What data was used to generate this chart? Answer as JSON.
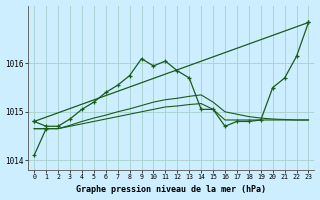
{
  "title": "Graphe pression niveau de la mer (hPa)",
  "bg_color": "#cceeff",
  "grid_color": "#aad4d4",
  "line_color": "#1a5c1a",
  "xlim": [
    -0.5,
    23.5
  ],
  "ylim": [
    1013.8,
    1017.2
  ],
  "yticks": [
    1014,
    1015,
    1016
  ],
  "xticks": [
    0,
    1,
    2,
    3,
    4,
    5,
    6,
    7,
    8,
    9,
    10,
    11,
    12,
    13,
    14,
    15,
    16,
    17,
    18,
    19,
    20,
    21,
    22,
    23
  ],
  "curve_jagged": {
    "x": [
      0,
      1,
      2,
      3,
      4,
      5,
      6,
      7,
      8,
      9,
      10,
      11,
      12,
      13,
      14,
      15,
      16,
      17,
      18,
      19,
      20,
      21,
      22,
      23
    ],
    "y": [
      1014.8,
      1014.7,
      1014.7,
      1014.85,
      1015.05,
      1015.2,
      1015.4,
      1015.55,
      1015.75,
      1016.1,
      1015.95,
      1016.05,
      1015.85,
      1015.7,
      1015.05,
      1015.05,
      1014.7,
      1014.8,
      1014.8,
      1014.83,
      1015.5,
      1015.7,
      1016.15,
      1016.85
    ]
  },
  "curve_straight": {
    "x": [
      0,
      23
    ],
    "y": [
      1014.8,
      1016.85
    ]
  },
  "curve_flat1": {
    "x": [
      0,
      1,
      2,
      3,
      4,
      5,
      6,
      7,
      8,
      9,
      10,
      11,
      12,
      13,
      14,
      15,
      16,
      17,
      18,
      19,
      20,
      21,
      22,
      23
    ],
    "y": [
      1014.65,
      1014.65,
      1014.65,
      1014.7,
      1014.75,
      1014.8,
      1014.85,
      1014.9,
      1014.95,
      1015.0,
      1015.05,
      1015.1,
      1015.12,
      1015.15,
      1015.17,
      1015.05,
      1014.83,
      1014.83,
      1014.83,
      1014.83,
      1014.83,
      1014.83,
      1014.83,
      1014.83
    ]
  },
  "curve_flat2": {
    "x": [
      0,
      1,
      2,
      3,
      4,
      5,
      6,
      7,
      8,
      9,
      10,
      11,
      12,
      13,
      14,
      15,
      16,
      17,
      18,
      19,
      20,
      21,
      22,
      23
    ],
    "y": [
      1014.65,
      1014.65,
      1014.65,
      1014.72,
      1014.8,
      1014.87,
      1014.93,
      1015.0,
      1015.06,
      1015.13,
      1015.2,
      1015.25,
      1015.28,
      1015.32,
      1015.35,
      1015.2,
      1015.0,
      1014.95,
      1014.9,
      1014.87,
      1014.85,
      1014.84,
      1014.83,
      1014.83
    ]
  },
  "curve_start": {
    "x": [
      0,
      1
    ],
    "y": [
      1014.1,
      1014.65
    ]
  }
}
